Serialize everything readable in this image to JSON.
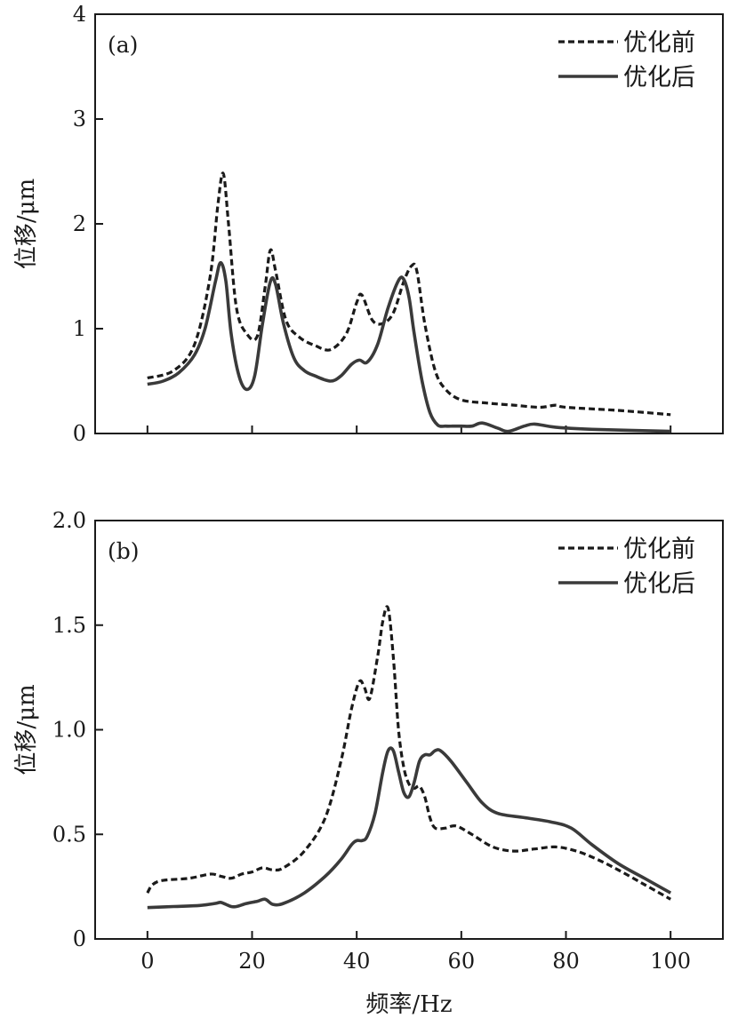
{
  "chart_data": [
    {
      "panel": "(a)",
      "type": "line",
      "xlabel": "",
      "ylabel": "位移/μm",
      "xlim": [
        -10,
        110
      ],
      "ylim": [
        0,
        4
      ],
      "xticks": [
        0,
        20,
        40,
        60,
        80,
        100
      ],
      "xtick_labels": [],
      "yticks": [
        0,
        1,
        2,
        3,
        4
      ],
      "ytick_labels": [
        "0",
        "1",
        "2",
        "3",
        "4"
      ],
      "legend": "top-right",
      "series": [
        {
          "name": "优化前",
          "style": "dashed",
          "x": [
            0,
            5,
            9,
            12,
            13.5,
            14.5,
            15.5,
            17,
            19,
            21,
            22.5,
            23.5,
            24.5,
            26.5,
            29,
            32,
            35,
            38,
            40,
            41,
            43,
            45,
            47,
            49,
            50.5,
            51.5,
            53,
            55,
            57,
            60,
            65,
            70,
            75,
            78,
            80,
            90,
            100
          ],
          "y": [
            0.53,
            0.6,
            0.85,
            1.5,
            2.2,
            2.48,
            2.0,
            1.2,
            0.95,
            0.93,
            1.4,
            1.75,
            1.55,
            1.08,
            0.92,
            0.84,
            0.8,
            0.95,
            1.25,
            1.32,
            1.08,
            1.05,
            1.15,
            1.45,
            1.6,
            1.55,
            1.05,
            0.6,
            0.42,
            0.32,
            0.29,
            0.27,
            0.25,
            0.27,
            0.25,
            0.22,
            0.18
          ]
        },
        {
          "name": "优化后",
          "style": "solid",
          "x": [
            0,
            3,
            6,
            9,
            11,
            13,
            14,
            15,
            16,
            17.5,
            19,
            20.5,
            22,
            23.5,
            24.5,
            26,
            28,
            30,
            32,
            35,
            37,
            39,
            40.5,
            42,
            44,
            46,
            48,
            49,
            50,
            51,
            52.5,
            54,
            55.5,
            57,
            58.5,
            60,
            62,
            64,
            67,
            69,
            72,
            74,
            78,
            85,
            100
          ],
          "y": [
            0.47,
            0.5,
            0.58,
            0.75,
            1.0,
            1.45,
            1.63,
            1.45,
            0.95,
            0.55,
            0.42,
            0.55,
            1.05,
            1.45,
            1.42,
            1.05,
            0.72,
            0.6,
            0.55,
            0.5,
            0.55,
            0.66,
            0.7,
            0.68,
            0.85,
            1.2,
            1.46,
            1.47,
            1.3,
            0.95,
            0.5,
            0.2,
            0.08,
            0.07,
            0.07,
            0.07,
            0.07,
            0.1,
            0.05,
            0.02,
            0.07,
            0.09,
            0.06,
            0.04,
            0.02
          ]
        }
      ]
    },
    {
      "panel": "(b)",
      "type": "line",
      "xlabel": "频率/Hz",
      "ylabel": "位移/μm",
      "xlim": [
        -10,
        110
      ],
      "ylim": [
        0,
        2.0
      ],
      "xticks": [
        0,
        20,
        40,
        60,
        80,
        100
      ],
      "xtick_labels": [
        "0",
        "20",
        "40",
        "60",
        "80",
        "100"
      ],
      "yticks": [
        0,
        0.5,
        1.0,
        1.5,
        2.0
      ],
      "ytick_labels": [
        "0",
        "0.5",
        "1.0",
        "1.5",
        "2.0"
      ],
      "legend": "top-right",
      "series": [
        {
          "name": "优化前",
          "style": "dashed",
          "x": [
            0,
            1,
            3,
            8,
            12,
            14,
            16,
            18,
            20,
            22,
            24,
            26,
            30,
            34,
            37,
            39,
            40.5,
            41.5,
            42.5,
            44,
            45,
            46,
            47,
            48,
            49,
            50,
            51,
            52,
            53,
            54,
            55,
            57,
            59,
            62,
            66,
            70,
            74,
            78,
            82,
            86,
            90,
            95,
            100
          ],
          "y": [
            0.22,
            0.26,
            0.28,
            0.29,
            0.31,
            0.3,
            0.29,
            0.31,
            0.32,
            0.34,
            0.33,
            0.34,
            0.42,
            0.58,
            0.85,
            1.1,
            1.23,
            1.2,
            1.15,
            1.35,
            1.52,
            1.58,
            1.35,
            1.0,
            0.82,
            0.74,
            0.72,
            0.73,
            0.68,
            0.58,
            0.53,
            0.53,
            0.54,
            0.5,
            0.44,
            0.42,
            0.43,
            0.44,
            0.42,
            0.38,
            0.33,
            0.26,
            0.19
          ]
        },
        {
          "name": "优化后",
          "style": "solid",
          "x": [
            0,
            5,
            10,
            13,
            14,
            15,
            16,
            17,
            19,
            21,
            22.5,
            24,
            26,
            30,
            34,
            37,
            39,
            40,
            41,
            42,
            43.5,
            45,
            46,
            47,
            48,
            49,
            50,
            51,
            52,
            53,
            54,
            55,
            56,
            58,
            61,
            64,
            67,
            72,
            77,
            81,
            85,
            90,
            95,
            100
          ],
          "y": [
            0.15,
            0.155,
            0.16,
            0.17,
            0.175,
            0.165,
            0.155,
            0.155,
            0.17,
            0.18,
            0.19,
            0.165,
            0.17,
            0.22,
            0.3,
            0.38,
            0.45,
            0.47,
            0.47,
            0.49,
            0.6,
            0.8,
            0.9,
            0.9,
            0.8,
            0.7,
            0.68,
            0.75,
            0.85,
            0.88,
            0.88,
            0.9,
            0.9,
            0.85,
            0.75,
            0.65,
            0.6,
            0.58,
            0.56,
            0.53,
            0.45,
            0.36,
            0.29,
            0.22
          ]
        }
      ]
    }
  ]
}
